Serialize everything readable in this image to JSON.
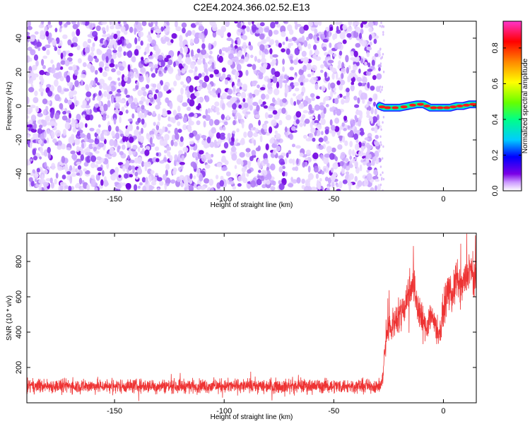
{
  "title": "C2E4.2024.366.02.52.E13",
  "chart_data": [
    {
      "type": "heatmap",
      "name": "spectrogram",
      "xlabel": "Height of straight line (km)",
      "ylabel": "Frequency (Hz)",
      "xlim": [
        -190,
        15
      ],
      "ylim": [
        -50,
        50
      ],
      "xticks": [
        -150,
        -100,
        -50,
        0
      ],
      "yticks": [
        -40,
        -20,
        0,
        20,
        40
      ],
      "noise_region_x": [
        -190,
        -29
      ],
      "signal_trace": {
        "x": [
          -29,
          -27,
          -24,
          -20,
          -16,
          -12,
          -9,
          -6,
          -3,
          0,
          3,
          6,
          9,
          12,
          15
        ],
        "y": [
          0,
          -1,
          -1,
          -1,
          0,
          1,
          1,
          -1,
          -1,
          -1,
          -1,
          0,
          0,
          1,
          1
        ]
      },
      "colorbar": {
        "label": "Normalized spectral amplitude",
        "range": [
          0,
          0.95
        ],
        "ticks": [
          0.0,
          0.2,
          0.4,
          0.6,
          0.8
        ],
        "colors": [
          "#ffffff",
          "#cc99ff",
          "#7b00e6",
          "#0000ff",
          "#00ccff",
          "#00ff88",
          "#66ff00",
          "#ffff00",
          "#ff8800",
          "#ff0000",
          "#ff33cc"
        ]
      }
    },
    {
      "type": "line",
      "name": "snr",
      "xlabel": "Height of straight line (km)",
      "ylabel": "SNR (10 * v/v)",
      "xlim": [
        -190,
        15
      ],
      "ylim": [
        0,
        960
      ],
      "xticks": [
        -150,
        -100,
        -50,
        0
      ],
      "yticks": [
        200,
        400,
        600,
        800
      ],
      "color": "#ee3333",
      "series": [
        {
          "x": [
            -190,
            -29,
            -28,
            -27,
            -26,
            -25,
            -24,
            -22,
            -20,
            -18,
            -16,
            -14,
            -12,
            -10,
            -8,
            -6,
            -4,
            -2,
            0,
            2,
            4,
            6,
            8,
            10,
            12,
            14,
            15
          ],
          "y": [
            95,
            95,
            110,
            250,
            380,
            440,
            420,
            470,
            500,
            540,
            620,
            700,
            560,
            480,
            420,
            500,
            460,
            380,
            520,
            640,
            600,
            700,
            640,
            700,
            760,
            680,
            700
          ],
          "spread": [
            45,
            45,
            50,
            90,
            100,
            110,
            100,
            110,
            110,
            120,
            130,
            140,
            130,
            120,
            100,
            110,
            100,
            90,
            110,
            120,
            110,
            130,
            120,
            130,
            130,
            120,
            110
          ]
        }
      ]
    }
  ]
}
